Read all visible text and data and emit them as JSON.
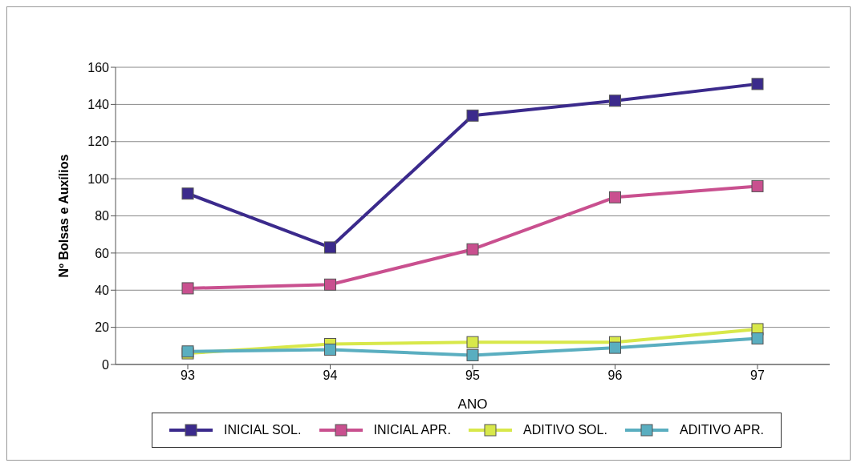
{
  "chart_data": {
    "type": "line",
    "xlabel": "ANO",
    "ylabel": "Nº Bolsas e Auxílios",
    "categories": [
      "93",
      "94",
      "95",
      "96",
      "97"
    ],
    "series": [
      {
        "name": "INICIAL SOL.",
        "color": "#3b2a8c",
        "values": [
          92,
          63,
          134,
          142,
          151
        ]
      },
      {
        "name": "INICIAL APR.",
        "color": "#c9508f",
        "values": [
          41,
          43,
          62,
          90,
          96
        ]
      },
      {
        "name": "ADITIVO SOL.",
        "color": "#d8e84a",
        "values": [
          6,
          11,
          12,
          12,
          19
        ]
      },
      {
        "name": "ADITIVO APR.",
        "color": "#5aaec0",
        "values": [
          7,
          8,
          5,
          9,
          14
        ]
      }
    ],
    "ylim": [
      0,
      160
    ],
    "yticks": [
      0,
      20,
      40,
      60,
      80,
      100,
      120,
      140,
      160
    ],
    "grid": "y",
    "legend": "bottom",
    "marker": "square",
    "line_style": "solid"
  }
}
